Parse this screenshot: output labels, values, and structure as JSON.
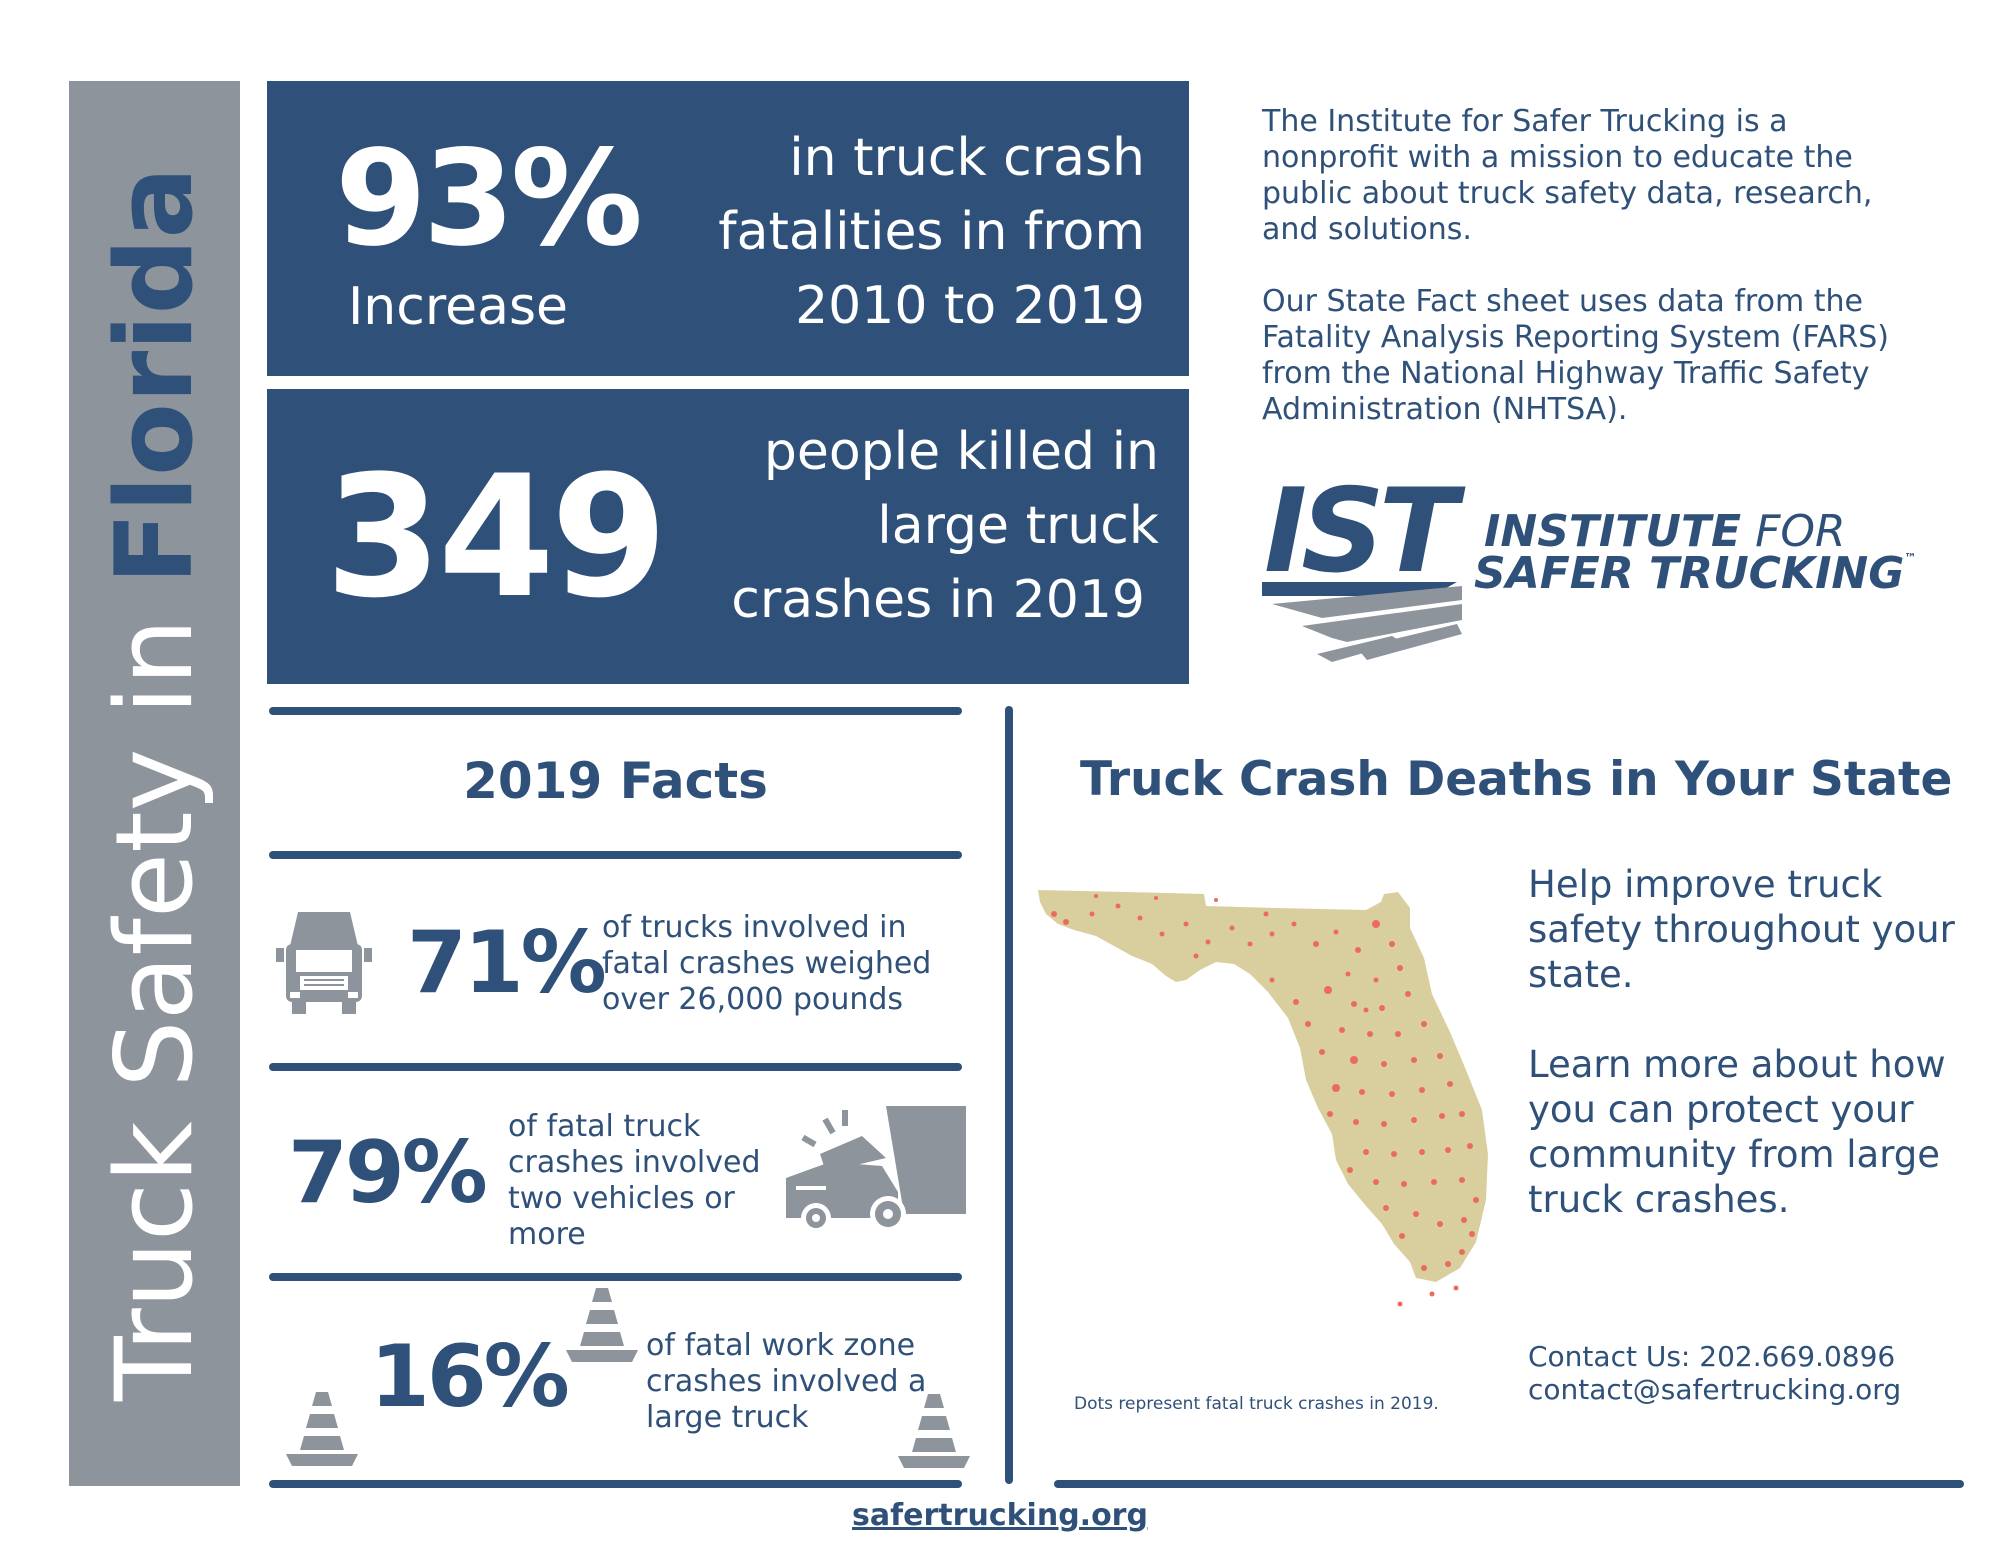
{
  "sidebar": {
    "title_prefix": "Truck Safety in ",
    "title_state": "Florida"
  },
  "stat1": {
    "number": "93%",
    "label": "Increase",
    "desc_lines": [
      "in truck crash",
      "fatalities in from",
      "2010 to 2019"
    ]
  },
  "stat2": {
    "number": "349",
    "desc_lines": [
      "people killed in",
      "large truck",
      "crashes in 2019"
    ]
  },
  "intro": {
    "p1": "The Institute for Safer Trucking is a nonprofit with a mission to educate the public about truck safety data, research, and solutions.",
    "p2": "Our State Fact sheet uses data from the Fatality Analysis Reporting System (FARS) from the National Highway Traffic Safety Administration (NHTSA)."
  },
  "logo": {
    "mark": "IST",
    "line1_bold": "INSTITUTE",
    "line1_light": " FOR",
    "line2": "SAFER TRUCKING",
    "tm": "™"
  },
  "facts": {
    "heading": "2019 Facts",
    "items": [
      {
        "value": "71%",
        "text": "of trucks involved in fatal crashes weighed over 26,000 pounds",
        "icon": "semi-truck-front-icon"
      },
      {
        "value": "79%",
        "text": "of fatal truck crashes involved two vehicles or more",
        "icon": "truck-collision-icon"
      },
      {
        "value": "16%",
        "text": "of fatal work zone crashes involved a large truck",
        "icon": "traffic-cone-icon"
      }
    ]
  },
  "map_section": {
    "heading": "Truck Crash Deaths in Your State",
    "caption": "Dots represent fatal truck crashes in 2019.",
    "cta1": "Help improve truck safety throughout your state.",
    "cta2": "Learn more about how you can protect your community from large truck crashes.",
    "contact_phone": "Contact Us: 202.669.0896",
    "contact_email": "contact@safertrucking.org"
  },
  "colors": {
    "navy": "#2f5179",
    "gray": "#8d949b",
    "land": "#d9cf9e",
    "dot": "#ec6a5e"
  },
  "footer": {
    "link": "safertrucking.org"
  }
}
